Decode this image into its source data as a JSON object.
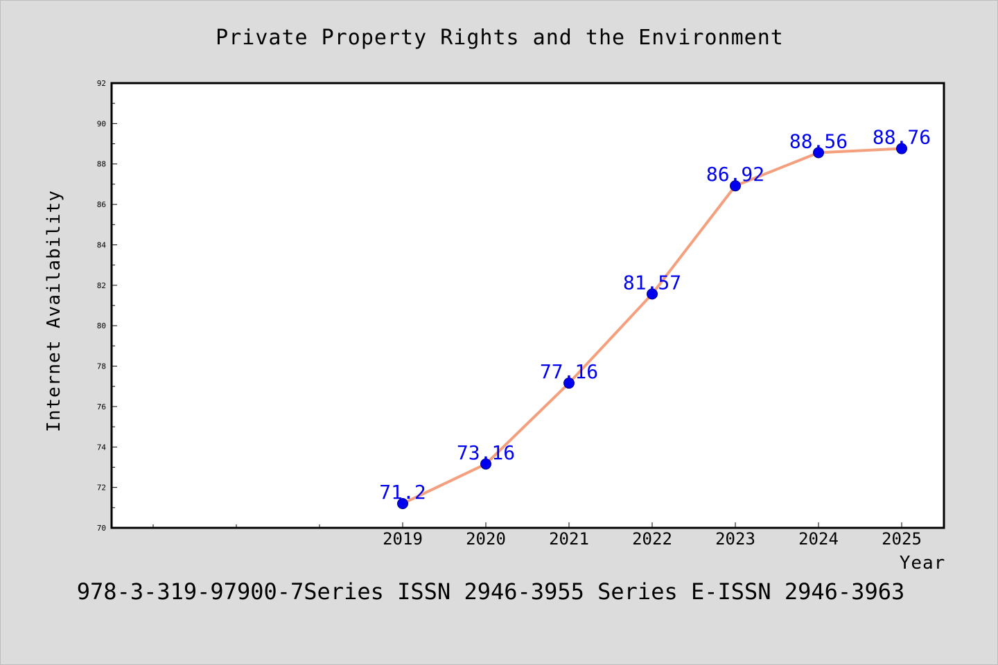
{
  "chart_data": {
    "type": "line",
    "title": "Private Property Rights and the Environment",
    "xlabel": "Year",
    "ylabel": "Internet Availability",
    "categories": [
      "2019",
      "2020",
      "2021",
      "2022",
      "2023",
      "2024",
      "2025"
    ],
    "series": [
      {
        "values": [
          71.2,
          73.16,
          77.16,
          81.57,
          86.92,
          88.56,
          88.76
        ],
        "labels": [
          "71.2",
          "73.16",
          "77.16",
          "81.57",
          "86.92",
          "88.56",
          "88.76"
        ]
      }
    ],
    "ylim": [
      70,
      92
    ],
    "yticks": [
      70,
      72,
      74,
      76,
      78,
      80,
      82,
      84,
      86,
      88,
      90,
      92
    ],
    "grid": false,
    "legend": "none"
  },
  "footer": {
    "text": "978-3-319-97900-7Series ISSN 2946-3955 Series E-ISSN 2946-3963"
  },
  "colors": {
    "background": "#dcdcdc",
    "plot_area": "#ffffff",
    "line": "#f4a07e",
    "marker": "#0000ee",
    "data_label": "#0000ee"
  }
}
